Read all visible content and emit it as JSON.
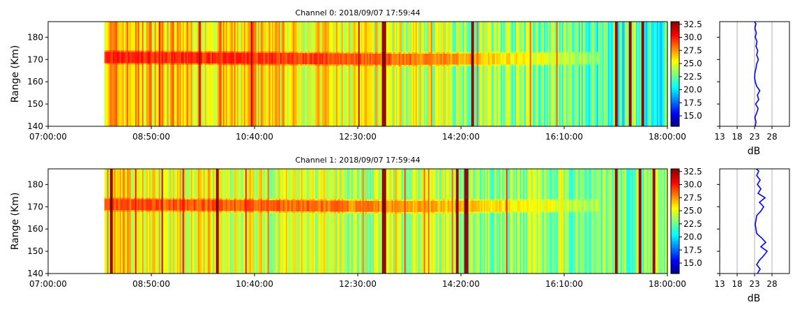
{
  "chart_data": [
    {
      "type": "heatmap",
      "title": "Channel 0: 2018/09/07 17:59:44",
      "ylabel": "Range (Km)",
      "xlabel": "",
      "x_ticks": [
        "07:00:00",
        "08:50:00",
        "10:40:00",
        "12:30:00",
        "14:20:00",
        "16:10:00",
        "18:00:00"
      ],
      "x_range": [
        "07:00:00",
        "18:00:00"
      ],
      "data_start": "08:00:00",
      "y_ticks": [
        140,
        150,
        160,
        170,
        180
      ],
      "ylim": [
        140,
        187
      ],
      "colorbar": {
        "colormap": "jet",
        "range": [
          13,
          33
        ],
        "ticks": [
          "15.0",
          "17.5",
          "20.0",
          "22.5",
          "25.0",
          "27.5",
          "30.0",
          "32.5"
        ]
      },
      "features": {
        "echo_band": {
          "range_km": 171,
          "start": "08:00:00",
          "end": "16:45:00",
          "peak_db": 30
        },
        "background_db": {
          "early": 27,
          "mid": 25,
          "late": 21
        },
        "strong_columns": [
          "12:57:00",
          "14:32:00",
          "17:05:00",
          "17:20:00",
          "17:33:00"
        ]
      },
      "profile": {
        "xlabel": "dB",
        "x_ticks": [
          13,
          18,
          23,
          28
        ],
        "xlim": [
          13,
          33
        ],
        "y": [
          140,
          142,
          144,
          146,
          148,
          150,
          152,
          154,
          156,
          158,
          160,
          162,
          164,
          166,
          168,
          170,
          172,
          174,
          176,
          178,
          180,
          182,
          184,
          186,
          187
        ],
        "x": [
          23.2,
          23.4,
          23.1,
          23.6,
          24.0,
          23.3,
          24.2,
          23.8,
          24.5,
          23.6,
          23.2,
          23.0,
          23.1,
          23.4,
          23.6,
          24.1,
          23.6,
          23.9,
          23.4,
          23.7,
          23.2,
          23.5,
          23.1,
          23.4,
          23.0
        ],
        "color": "#0000ff"
      }
    },
    {
      "type": "heatmap",
      "title": "Channel 1: 2018/09/07 17:59:44",
      "ylabel": "Range (Km)",
      "xlabel": "",
      "x_ticks": [
        "07:00:00",
        "08:50:00",
        "10:40:00",
        "12:30:00",
        "14:20:00",
        "16:10:00",
        "18:00:00"
      ],
      "x_range": [
        "07:00:00",
        "18:00:00"
      ],
      "data_start": "08:00:00",
      "y_ticks": [
        140,
        150,
        160,
        170,
        180
      ],
      "ylim": [
        140,
        187
      ],
      "colorbar": {
        "colormap": "jet",
        "range": [
          13,
          33
        ],
        "ticks": [
          "15.0",
          "17.5",
          "20.0",
          "22.5",
          "25.0",
          "27.5",
          "30.0",
          "32.5"
        ]
      },
      "features": {
        "echo_band": {
          "range_km": 171,
          "start": "08:00:00",
          "end": "16:45:00",
          "peak_db": 29
        },
        "background_db": {
          "early": 26,
          "mid": 24,
          "late": 23
        },
        "strong_columns": [
          "08:07:00",
          "10:00:00",
          "12:57:00",
          "14:15:00",
          "14:25:00",
          "17:05:00",
          "17:30:00",
          "17:45:00"
        ]
      },
      "profile": {
        "xlabel": "dB",
        "x_ticks": [
          13,
          18,
          23,
          28
        ],
        "xlim": [
          13,
          33
        ],
        "y": [
          140,
          142,
          144,
          146,
          148,
          150,
          152,
          154,
          156,
          158,
          160,
          162,
          164,
          166,
          168,
          170,
          172,
          174,
          176,
          178,
          180,
          182,
          184,
          186,
          187
        ],
        "x": [
          23.8,
          24.6,
          23.6,
          24.4,
          25.6,
          26.6,
          24.8,
          26.2,
          25.0,
          23.6,
          23.4,
          23.2,
          23.4,
          23.6,
          24.8,
          25.6,
          24.4,
          26.0,
          24.0,
          24.8,
          23.8,
          24.6,
          23.6,
          24.2,
          23.5
        ],
        "color": "#0000ff"
      }
    }
  ]
}
